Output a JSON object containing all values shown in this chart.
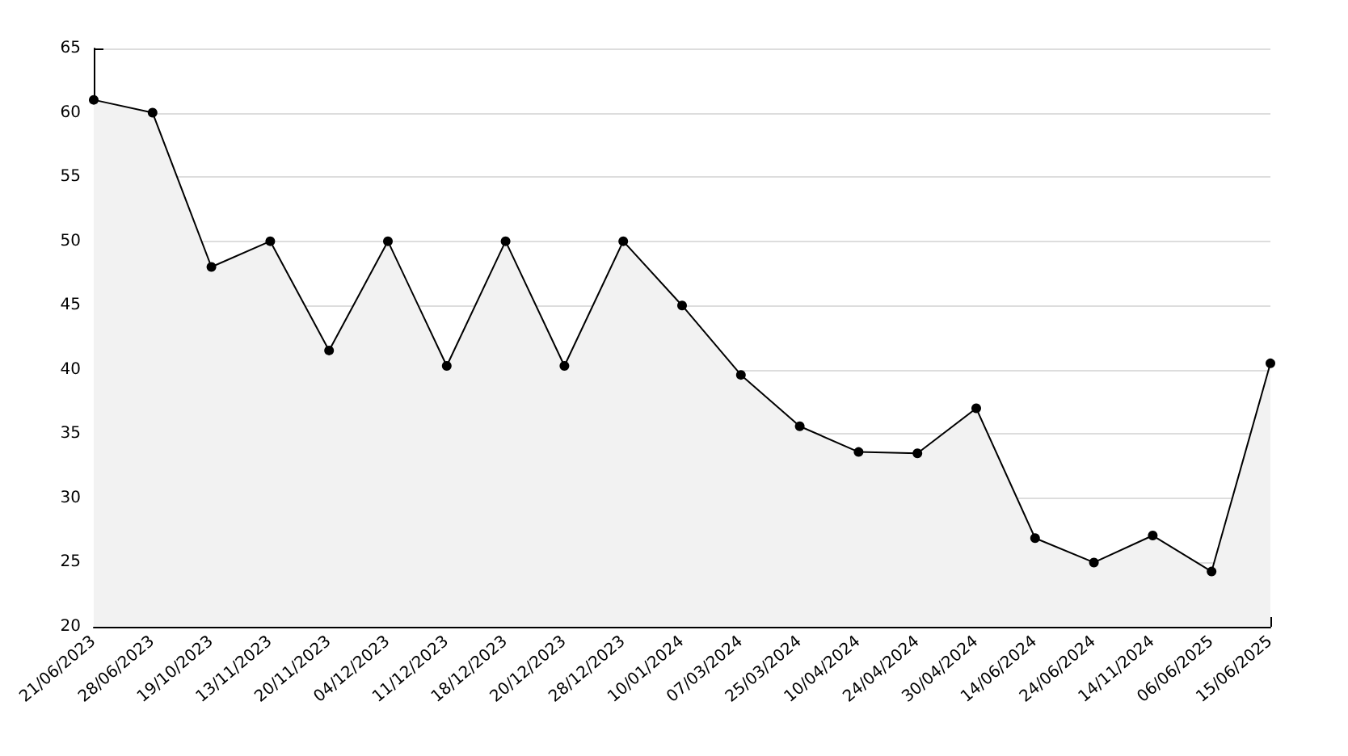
{
  "chart_data": {
    "type": "area",
    "categories": [
      "21/06/2023",
      "28/06/2023",
      "19/10/2023",
      "13/11/2023",
      "20/11/2023",
      "04/12/2023",
      "11/12/2023",
      "18/12/2023",
      "20/12/2023",
      "28/12/2023",
      "10/01/2024",
      "07/03/2024",
      "25/03/2024",
      "10/04/2024",
      "24/04/2024",
      "30/04/2024",
      "14/06/2024",
      "24/06/2024",
      "14/11/2024",
      "06/06/2025",
      "15/06/2025"
    ],
    "series": [
      {
        "color": "#000000",
        "values": [
          61,
          60,
          48,
          50,
          41.5,
          50,
          40.3,
          50,
          40.3,
          50,
          45,
          39.6,
          35.6,
          33.6,
          33.5,
          37,
          26.9,
          25,
          27.1,
          24.3,
          40.5
        ]
      }
    ],
    "ylim": [
      20,
      65
    ],
    "yticks": [
      20,
      25,
      30,
      35,
      40,
      45,
      50,
      55,
      60,
      65
    ],
    "grid": "y",
    "marker": "circle",
    "line_style": "solid"
  }
}
